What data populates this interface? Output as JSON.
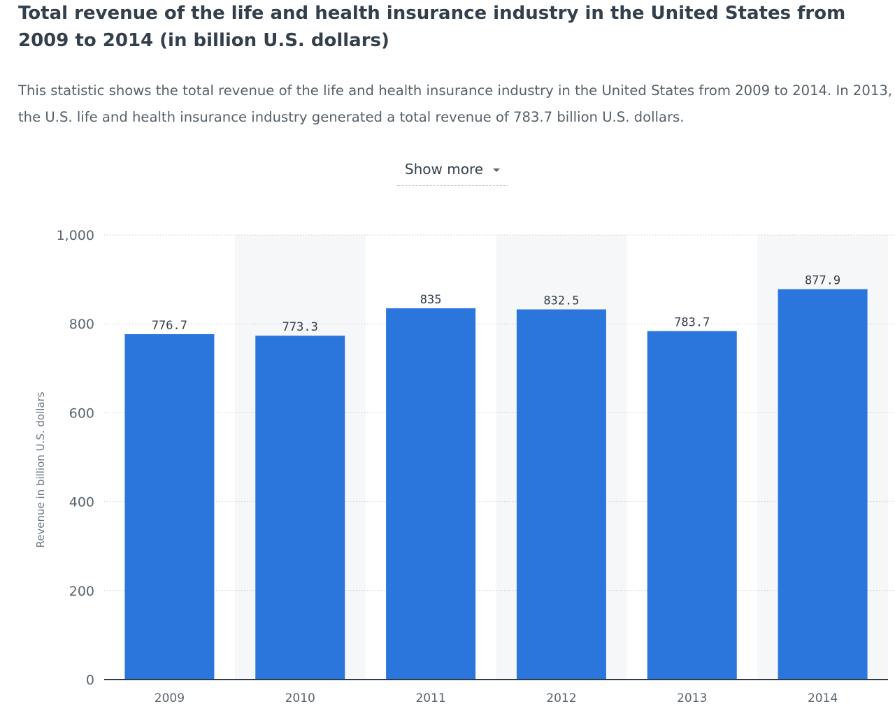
{
  "title": "Total revenue of the life and health insurance industry in the United States from 2009 to 2014 (in billion U.S. dollars)",
  "description": "This statistic shows the total revenue of the life and health insurance industry in the United States from 2009 to 2014. In 2013, the U.S. life and health insurance industry generated a total revenue of 783.7 billion U.S. dollars.",
  "show_more": {
    "label": "Show more",
    "icon": "chevron-down-icon"
  },
  "colors": {
    "bar": "#2a76dd",
    "band": "#f6f7f8",
    "grid": "#c9ced3",
    "axis": "#2f3b48"
  },
  "chart_data": {
    "type": "bar",
    "categories": [
      "2009",
      "2010",
      "2011",
      "2012",
      "2013",
      "2014"
    ],
    "values": [
      776.7,
      773.3,
      835,
      832.5,
      783.7,
      877.9
    ],
    "value_labels": [
      "776.7",
      "773.3",
      "835",
      "832.5",
      "783.7",
      "877.9"
    ],
    "ylabel": "Revenue in billion U.S. dollars",
    "ylim": [
      0,
      1000
    ],
    "yticks": [
      0,
      200,
      400,
      600,
      800,
      1000
    ],
    "ytick_labels": [
      "0",
      "200",
      "400",
      "600",
      "800",
      "1,000"
    ],
    "grid": true,
    "legend": false
  }
}
